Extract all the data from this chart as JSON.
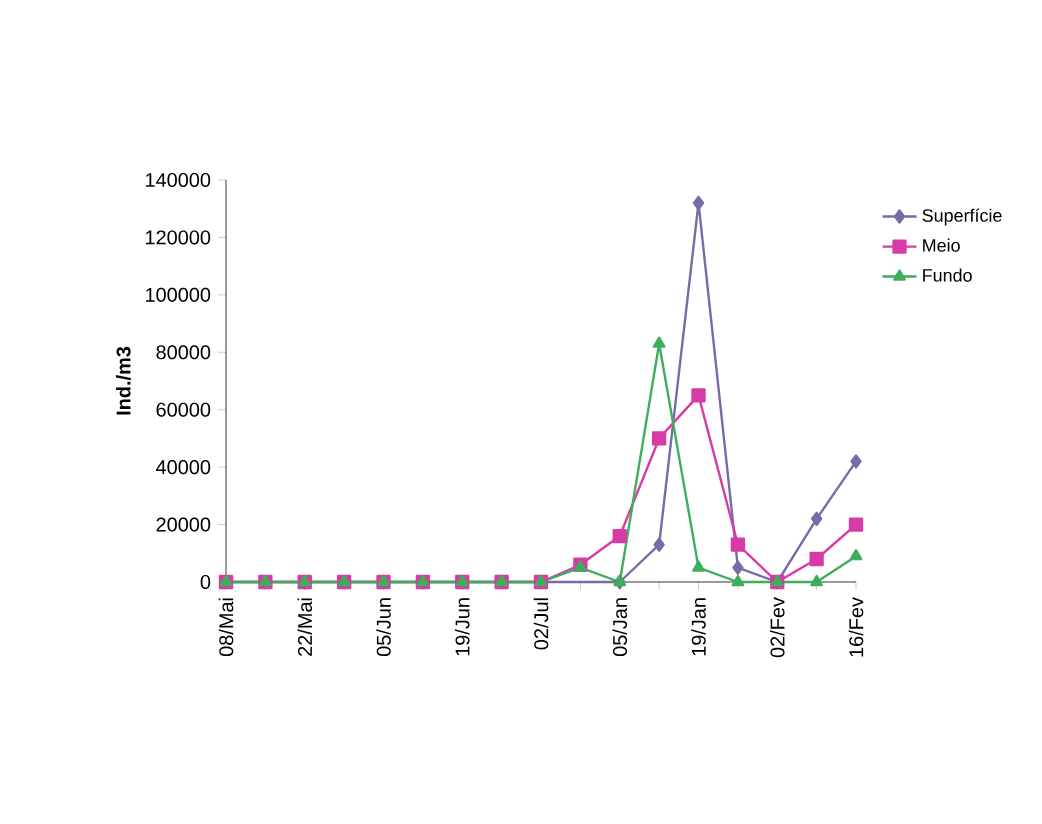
{
  "chart_data": {
    "type": "line",
    "ylabel": "Ind./m3",
    "categories": [
      "08/Mai",
      null,
      "22/Mai",
      null,
      "05/Jun",
      null,
      "19/Jun",
      null,
      "02/Jul",
      null,
      "05/Jan",
      null,
      "19/Jan",
      null,
      "02/Fev",
      null,
      "16/Fev"
    ],
    "series": [
      {
        "name": "Superfície",
        "color": "#7a6aa8",
        "marker": "diamond",
        "values": [
          0,
          0,
          0,
          0,
          0,
          0,
          0,
          0,
          0,
          null,
          0,
          13000,
          132000,
          5000,
          0,
          22000,
          42000
        ]
      },
      {
        "name": "Meio",
        "color": "#d63ba8",
        "marker": "square",
        "values": [
          0,
          0,
          0,
          0,
          0,
          0,
          0,
          0,
          0,
          6000,
          16000,
          50000,
          65000,
          13000,
          0,
          8000,
          20000
        ]
      },
      {
        "name": "Fundo",
        "color": "#3fae5a",
        "marker": "triangle",
        "values": [
          0,
          0,
          0,
          0,
          0,
          0,
          0,
          0,
          0,
          5000,
          0,
          83000,
          5000,
          0,
          0,
          0,
          9000
        ]
      }
    ],
    "ylim": [
      0,
      140000
    ],
    "yticks": [
      0,
      20000,
      40000,
      60000,
      80000,
      100000,
      120000,
      140000
    ],
    "grid": false,
    "legend": "top right"
  }
}
